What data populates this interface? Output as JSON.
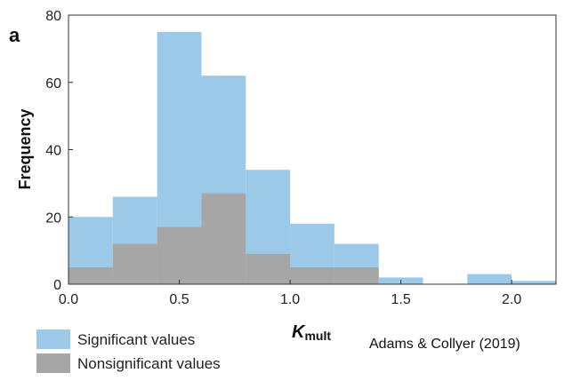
{
  "chart_data": {
    "type": "bar",
    "panel_label": "a",
    "xlabel_main": "K",
    "xlabel_sub": "mult",
    "ylabel": "Frequency",
    "xlim": [
      0.0,
      2.2
    ],
    "ylim": [
      0,
      80
    ],
    "x_ticks": [
      0.0,
      0.5,
      1.0,
      1.5,
      2.0
    ],
    "x_tick_labels": [
      "0.0",
      "0.5",
      "1.0",
      "1.5",
      "2.0"
    ],
    "y_ticks": [
      0,
      20,
      40,
      60,
      80
    ],
    "y_tick_labels": [
      "0",
      "20",
      "40",
      "60",
      "80"
    ],
    "bin_edges": [
      0.0,
      0.2,
      0.4,
      0.6,
      0.8,
      1.0,
      1.2,
      1.4,
      1.6,
      1.8,
      2.0,
      2.2
    ],
    "series": [
      {
        "name": "Significant values",
        "color": "#9cc9e8",
        "values": [
          20,
          26,
          75,
          62,
          34,
          18,
          12,
          2,
          0,
          3,
          1
        ]
      },
      {
        "name": "Nonsignificant values",
        "color": "#a6a6a6",
        "values": [
          5,
          12,
          17,
          27,
          9,
          5,
          5,
          0,
          0,
          0,
          0
        ]
      }
    ],
    "annotation": "Adams & Collyer (2019)"
  }
}
